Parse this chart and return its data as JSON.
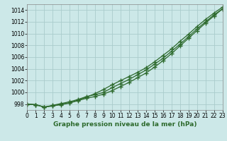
{
  "x": [
    0,
    1,
    2,
    3,
    4,
    5,
    6,
    7,
    8,
    9,
    10,
    11,
    12,
    13,
    14,
    15,
    16,
    17,
    18,
    19,
    20,
    21,
    22,
    23
  ],
  "line1": [
    998.0,
    997.9,
    997.5,
    997.8,
    998.1,
    998.4,
    998.8,
    999.3,
    999.6,
    1000.0,
    1000.8,
    1001.5,
    1002.2,
    1003.0,
    1003.8,
    1004.8,
    1005.8,
    1007.0,
    1008.2,
    1009.5,
    1010.8,
    1012.0,
    1013.2,
    1014.2
  ],
  "line2": [
    998.0,
    997.9,
    997.5,
    997.7,
    998.0,
    998.2,
    998.6,
    999.0,
    999.3,
    999.7,
    1000.3,
    1001.0,
    1001.7,
    1002.5,
    1003.3,
    1004.3,
    1005.4,
    1006.6,
    1007.9,
    1009.2,
    1010.5,
    1011.8,
    1013.0,
    1014.2
  ],
  "line3": [
    998.0,
    997.9,
    997.5,
    997.7,
    997.9,
    998.2,
    998.7,
    999.2,
    999.8,
    1000.5,
    1001.3,
    1002.0,
    1002.7,
    1003.4,
    1004.2,
    1005.2,
    1006.3,
    1007.4,
    1008.7,
    1009.9,
    1011.2,
    1012.4,
    1013.5,
    1014.5
  ],
  "line_color": "#2d6a2d",
  "bg_color": "#cce8e8",
  "grid_color": "#aacccc",
  "title": "Graphe pression niveau de la mer (hPa)",
  "xlim": [
    0,
    23
  ],
  "ylim": [
    997,
    1015
  ],
  "yticks": [
    998,
    1000,
    1002,
    1004,
    1006,
    1008,
    1010,
    1012,
    1014
  ],
  "xticks": [
    0,
    1,
    2,
    3,
    4,
    5,
    6,
    7,
    8,
    9,
    10,
    11,
    12,
    13,
    14,
    15,
    16,
    17,
    18,
    19,
    20,
    21,
    22,
    23
  ],
  "marker": "+",
  "markersize": 4,
  "linewidth": 0.9,
  "tick_fontsize": 5.5,
  "xlabel_fontsize": 6.5
}
